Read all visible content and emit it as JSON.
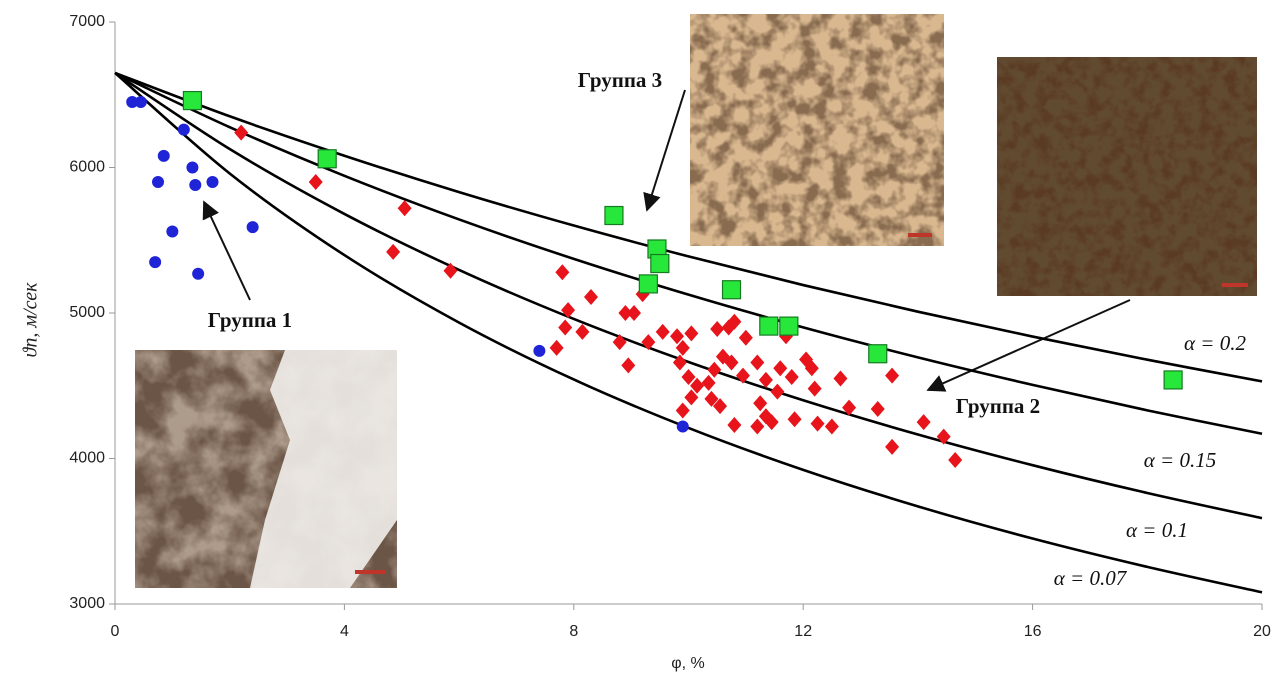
{
  "chart_data": {
    "type": "scatter",
    "x_label": "φ, %",
    "y_label": "ϑп, м/сек",
    "xlim": [
      0,
      20
    ],
    "ylim": [
      3000,
      7000
    ],
    "xticks": [
      0,
      4,
      8,
      12,
      16,
      20
    ],
    "yticks": [
      3000,
      4000,
      5000,
      6000,
      7000
    ],
    "series": [
      {
        "name": "Группа 1",
        "color": "#1f24d6",
        "marker": "circle",
        "x": [
          0.3,
          0.45,
          1.2,
          0.85,
          1.35,
          0.75,
          1.4,
          1.7,
          1.0,
          2.4,
          0.7,
          1.45,
          7.4,
          9.9
        ],
        "values": [
          6450,
          6450,
          6260,
          6080,
          6000,
          5900,
          5880,
          5900,
          5560,
          5590,
          5350,
          5270,
          4740,
          4220
        ]
      },
      {
        "name": "Группа 2",
        "color": "#e8141b",
        "marker": "diamond",
        "x": [
          2.2,
          3.5,
          5.05,
          4.85,
          5.85,
          7.8,
          7.9,
          8.3,
          7.85,
          8.15,
          7.7,
          8.9,
          9.05,
          9.2,
          8.8,
          8.95,
          9.3,
          9.55,
          9.8,
          9.9,
          10.05,
          9.85,
          10.0,
          10.15,
          9.9,
          10.05,
          10.35,
          10.45,
          10.5,
          10.7,
          10.8,
          10.6,
          10.75,
          10.4,
          10.55,
          10.8,
          11.0,
          10.95,
          11.2,
          11.35,
          11.25,
          11.35,
          11.45,
          11.2,
          11.55,
          11.6,
          11.7,
          11.8,
          11.85,
          12.05,
          12.15,
          12.2,
          12.25,
          12.5,
          12.65,
          12.8,
          13.3,
          13.55,
          13.55,
          14.1,
          14.45,
          14.65
        ],
        "values": [
          6240,
          5900,
          5720,
          5420,
          5290,
          5280,
          5020,
          5110,
          4900,
          4870,
          4760,
          5000,
          5000,
          5130,
          4800,
          4640,
          4800,
          4870,
          4840,
          4760,
          4860,
          4660,
          4560,
          4500,
          4330,
          4420,
          4520,
          4610,
          4890,
          4900,
          4940,
          4700,
          4660,
          4410,
          4360,
          4230,
          4830,
          4570,
          4660,
          4540,
          4380,
          4290,
          4250,
          4220,
          4460,
          4620,
          4840,
          4560,
          4270,
          4680,
          4620,
          4480,
          4240,
          4220,
          4550,
          4350,
          4340,
          4570,
          4080,
          4250,
          4150,
          3990
        ]
      },
      {
        "name": "Группа 3",
        "color": "#27e83a",
        "marker": "square",
        "x": [
          1.35,
          3.7,
          8.7,
          9.45,
          9.5,
          9.3,
          10.75,
          11.4,
          11.75,
          13.3,
          18.45
        ],
        "values": [
          6460,
          6060,
          5670,
          5440,
          5340,
          5200,
          5160,
          4910,
          4910,
          4720,
          4540
        ]
      }
    ],
    "curves": [
      {
        "name": "α = 0.2",
        "color": "#000000",
        "x": [
          0,
          2,
          4,
          6,
          8,
          10,
          12,
          14,
          16,
          18,
          20
        ],
        "values": [
          6650,
          6352,
          6081,
          5831,
          5601,
          5389,
          5192,
          5009,
          4838,
          4679,
          4530
        ]
      },
      {
        "name": "α = 0.15",
        "color": "#000000",
        "x": [
          0,
          2,
          4,
          6,
          8,
          10,
          12,
          14,
          16,
          18,
          20
        ],
        "values": [
          6650,
          6277,
          5943,
          5643,
          5372,
          5126,
          4901,
          4695,
          4506,
          4331,
          4170
        ]
      },
      {
        "name": "α = 0.1",
        "color": "#000000",
        "x": [
          0,
          2,
          4,
          6,
          8,
          10,
          12,
          14,
          16,
          18,
          20
        ],
        "values": [
          6650,
          6127,
          5681,
          5296,
          4959,
          4663,
          4400,
          4165,
          3954,
          3763,
          3590
        ]
      },
      {
        "name": "α = 0.07",
        "color": "#000000",
        "x": [
          0,
          2,
          4,
          6,
          8,
          10,
          12,
          14,
          16,
          18,
          20
        ],
        "values": [
          6650,
          5959,
          5398,
          4934,
          4543,
          4210,
          3922,
          3671,
          3450,
          3255,
          3080
        ]
      }
    ]
  }
}
